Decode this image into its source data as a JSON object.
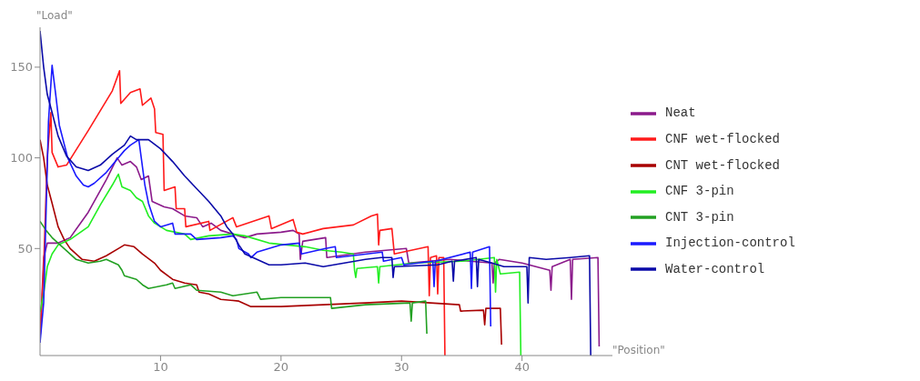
{
  "chart_data": {
    "type": "line",
    "xlabel": "\"Position\"",
    "ylabel": "\"Load\"",
    "xlim": [
      0,
      47.5
    ],
    "ylim": [
      -9,
      172
    ],
    "xticks": [
      10,
      20,
      30,
      40
    ],
    "yticks": [
      50,
      100,
      150
    ],
    "legend": "right",
    "series": [
      {
        "name": "Neat",
        "color": "#8b1a8b",
        "x": [
          0,
          0.3,
          0.6,
          1.5,
          2.5,
          4,
          5.5,
          6.4,
          6.8,
          7.5,
          8,
          8.4,
          9,
          9.3,
          10.3,
          11,
          12,
          13,
          13.5,
          14.2,
          15,
          16,
          17,
          18,
          20,
          21,
          21.5,
          21.6,
          21.8,
          23.7,
          23.8,
          27,
          30.4,
          30.6,
          34,
          37.5,
          37.6,
          37.7,
          38.1,
          40,
          42.3,
          42.4,
          42.5,
          44,
          44.1,
          44.2,
          46.3,
          46.4
        ],
        "values": [
          0,
          45,
          53,
          53,
          56,
          70,
          88,
          100,
          96,
          98,
          95,
          88,
          90,
          76,
          73,
          72,
          68,
          67,
          62,
          64,
          60,
          58,
          56,
          58,
          59,
          60,
          58,
          44,
          54,
          56,
          45,
          48,
          50,
          42,
          44,
          42,
          31,
          42,
          44,
          42,
          38,
          27,
          40,
          44,
          22,
          44,
          45,
          -4
        ]
      },
      {
        "name": "CNF wet-flocked",
        "color": "#ff1a1a",
        "x": [
          0,
          0.3,
          0.6,
          0.9,
          1,
          1.5,
          2.2,
          4,
          6,
          6.6,
          6.7,
          7.5,
          8.3,
          8.5,
          9.2,
          9.5,
          9.6,
          10.2,
          10.3,
          11.2,
          11.3,
          12,
          12.1,
          14,
          14.1,
          16,
          16.3,
          19,
          19.2,
          21,
          21.3,
          21.8,
          23.5,
          26,
          27.5,
          28,
          28.1,
          28.2,
          29.2,
          29.4,
          32.2,
          32.3,
          32.4,
          32.9,
          33,
          33.1,
          33.5,
          33.6
        ],
        "values": [
          0,
          40,
          100,
          125,
          103,
          95,
          96,
          115,
          137,
          148,
          130,
          136,
          138,
          129,
          133,
          127,
          114,
          113,
          82,
          84,
          72,
          72,
          62,
          65,
          60,
          67,
          62,
          68,
          61,
          66,
          59,
          58,
          61,
          63,
          68,
          69,
          52,
          60,
          61,
          47,
          51,
          24,
          45,
          46,
          25,
          45,
          45,
          -9
        ]
      },
      {
        "name": "CNT wet-flocked",
        "color": "#a80000",
        "x": [
          0,
          0.3,
          0.6,
          1,
          1.5,
          2,
          2.5,
          3.5,
          4.5,
          5.5,
          6.5,
          7,
          7.8,
          8.5,
          9.5,
          10,
          11,
          12,
          13,
          13.2,
          14,
          15,
          16.5,
          17.5,
          20,
          23.5,
          27,
          30,
          34.8,
          34.9,
          36.8,
          36.9,
          37,
          38.2,
          38.3
        ],
        "values": [
          110,
          100,
          85,
          75,
          62,
          55,
          50,
          44,
          43,
          46,
          50,
          52,
          51,
          47,
          42,
          38,
          33,
          31,
          30,
          26,
          25,
          22,
          21,
          18,
          18,
          19,
          20,
          21,
          19,
          15.5,
          16,
          8,
          17,
          17,
          -3
        ]
      },
      {
        "name": "CNF 3-pin",
        "color": "#22ee22",
        "x": [
          0,
          0.3,
          0.6,
          1,
          1.5,
          2.5,
          4,
          5,
          6,
          6.5,
          6.8,
          7.5,
          8,
          8.5,
          9,
          9.5,
          10.5,
          12,
          12.5,
          14,
          16,
          17,
          19,
          22,
          23.5,
          25,
          26,
          26.1,
          26.2,
          26.3,
          28,
          28.1,
          28.2,
          31,
          35,
          37.7,
          37.8,
          37.9,
          38.2,
          39.8,
          39.9
        ],
        "values": [
          15,
          25,
          40,
          47,
          52,
          55,
          62,
          74,
          85,
          91,
          84,
          82,
          78,
          76,
          68,
          64,
          60,
          58,
          55,
          57,
          58,
          57,
          53,
          51,
          49,
          48,
          47,
          38,
          34,
          39,
          40,
          31,
          40,
          42,
          43,
          45,
          26,
          44,
          36,
          37,
          -9
        ]
      },
      {
        "name": "CNT 3-pin",
        "color": "#22a022",
        "x": [
          0,
          0.5,
          1,
          2,
          3,
          4,
          5,
          5.5,
          6.5,
          6.8,
          7,
          8,
          8.5,
          9,
          10.5,
          11,
          11.2,
          12.5,
          13,
          15,
          16,
          18,
          18.3,
          20,
          23.4,
          24.1,
          24.2,
          27,
          30.7,
          30.8,
          30.9,
          32,
          32.1
        ],
        "values": [
          65,
          60,
          56,
          50,
          44,
          42,
          43,
          44,
          41,
          38,
          35,
          33,
          30,
          28,
          30,
          31,
          28,
          30,
          27,
          26,
          24,
          26,
          22,
          23,
          23,
          23,
          17,
          19,
          20,
          10,
          20,
          21,
          3
        ]
      },
      {
        "name": "Injection-control",
        "color": "#1a1aff",
        "x": [
          0,
          0.3,
          0.7,
          1,
          1.3,
          1.6,
          2.3,
          3,
          3.6,
          4,
          4.5,
          5.5,
          6.5,
          7,
          7.5,
          8.2,
          8.4,
          8.7,
          9,
          9.5,
          10,
          11,
          11.2,
          12.5,
          13,
          15,
          16,
          16.3,
          16.5,
          17.3,
          17.5,
          18,
          20,
          21.5,
          21.7,
          23.7,
          24.5,
          24.6,
          28.4,
          28.5,
          30,
          30.2,
          32.6,
          32.7,
          32.8,
          35.7,
          35.8,
          35.9,
          37.3,
          37.4
        ],
        "values": [
          -2,
          20,
          120,
          151,
          135,
          118,
          100,
          90,
          85,
          84,
          86,
          92,
          100,
          104,
          107,
          110,
          100,
          85,
          75,
          65,
          62,
          64,
          58,
          58,
          55,
          56,
          57,
          55,
          50,
          47,
          45,
          48,
          52,
          53,
          47,
          50,
          51,
          45,
          48,
          43,
          45,
          41,
          43,
          29,
          43,
          48,
          28,
          48,
          51,
          7
        ]
      },
      {
        "name": "Water-control",
        "color": "#0a0aa8",
        "x": [
          0,
          0.3,
          0.6,
          1,
          1.5,
          2.2,
          3,
          4,
          5,
          6,
          7,
          7.5,
          8,
          9,
          10,
          11,
          12,
          13,
          14,
          15,
          15.5,
          16,
          16.5,
          17,
          18,
          19,
          20,
          22,
          23.5,
          27,
          28.3,
          29.2,
          29.3,
          29.4,
          33,
          34.2,
          34.3,
          34.4,
          36.2,
          36.3,
          36.4,
          37.5,
          38.5,
          40.4,
          40.5,
          40.6,
          42,
          44,
          45.6,
          45.7
        ],
        "values": [
          170,
          150,
          135,
          125,
          112,
          101,
          95,
          93,
          96,
          102,
          107,
          112,
          110,
          110,
          105,
          98,
          90,
          83,
          76,
          68,
          62,
          58,
          52,
          47,
          44,
          41,
          41,
          42,
          40,
          44,
          45,
          45,
          34,
          40,
          41,
          43,
          32,
          43,
          45,
          29,
          44,
          42,
          40,
          40,
          20,
          45,
          44,
          45,
          46,
          -9
        ]
      }
    ]
  }
}
